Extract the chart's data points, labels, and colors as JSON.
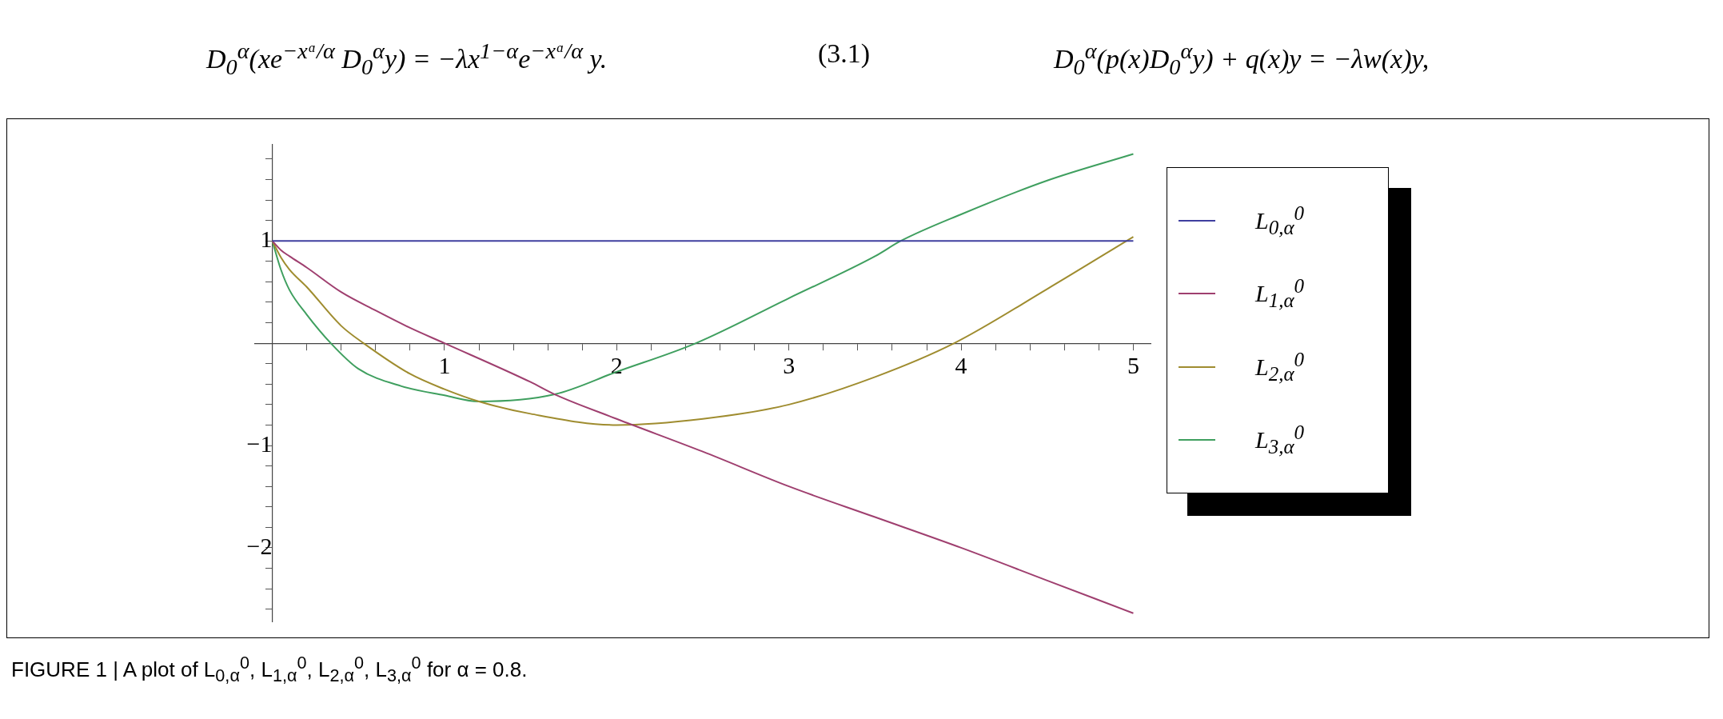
{
  "chart_data": {
    "type": "line",
    "annotations": [
      "D$_{0}$$^{α}$(xe$^{−xᵅ/α}$ D$_{0}$$^{α}$y) = −λx$^{1−α}$e$^{−xᵅ/α}$ y.",
      "(3.1)",
      "D$_{0}$$^{α}$(p(x)D$_{0}$$^{α}$y) + q(x)y = −λw(x)y,",
      "FIGURE 1 | A plot of L$_{0,α}$$^{0}$, L$_{1,α}$$^{0}$, L$_{2,α}$$^{0}$, L$_{3,α}$$^{0}$ for α = 0.8."
    ],
    "series": [
      {
        "name": "L$_{0,α}$$^{0}$",
        "color": "#3f3f9f",
        "x": [
          0,
          5
        ],
        "values": [
          1,
          1
        ]
      },
      {
        "name": "L$_{1,α}$$^{0}$",
        "color": "#9f3f6f",
        "x": [
          0,
          0.05,
          0.1,
          0.2,
          0.4,
          0.6,
          0.8,
          1.0,
          1.5,
          1.64,
          2.0,
          2.5,
          3.0,
          3.5,
          4.0,
          4.5,
          5.0
        ],
        "values": [
          1,
          0.91,
          0.85,
          0.74,
          0.5,
          0.32,
          0.15,
          0,
          -0.38,
          -0.5,
          -0.74,
          -1.06,
          -1.4,
          -1.7,
          -2.0,
          -2.32,
          -2.64
        ]
      },
      {
        "name": "L$_{2,α}$$^{0}$",
        "color": "#9f8c2f",
        "x": [
          0,
          0.05,
          0.1,
          0.2,
          0.4,
          0.53,
          0.8,
          1.0,
          1.2,
          1.5,
          2.0,
          2.5,
          3.0,
          3.5,
          3.96,
          4.5,
          5.0
        ],
        "values": [
          1,
          0.84,
          0.72,
          0.55,
          0.17,
          0,
          -0.3,
          -0.45,
          -0.57,
          -0.69,
          -0.8,
          -0.74,
          -0.6,
          -0.33,
          0,
          0.53,
          1.04
        ]
      },
      {
        "name": "L$_{3,α}$$^{0}$",
        "color": "#3f9f5f",
        "x": [
          0,
          0.05,
          0.1,
          0.2,
          0.34,
          0.5,
          0.75,
          1.0,
          1.2,
          1.64,
          2.0,
          2.46,
          3.0,
          3.5,
          3.65,
          4.0,
          4.5,
          5.0
        ],
        "values": [
          1,
          0.72,
          0.52,
          0.28,
          0,
          -0.25,
          -0.42,
          -0.51,
          -0.57,
          -0.5,
          -0.28,
          0,
          0.44,
          0.85,
          1.0,
          1.26,
          1.59,
          1.85
        ]
      }
    ],
    "xlim": [
      -0.1,
      5.1
    ],
    "ylim": [
      -2.72,
      1.94
    ],
    "xticks": [
      {
        "value": 0.2,
        "label": null
      },
      {
        "value": 0.4,
        "label": null
      },
      {
        "value": 0.6,
        "label": null
      },
      {
        "value": 0.8,
        "label": null
      },
      1,
      {
        "value": 1.2,
        "label": null
      },
      {
        "value": 1.4,
        "label": null
      },
      {
        "value": 1.6,
        "label": null
      },
      {
        "value": 1.8,
        "label": null
      },
      2,
      {
        "value": 2.2,
        "label": null
      },
      {
        "value": 2.4,
        "label": null
      },
      {
        "value": 2.6,
        "label": null
      },
      {
        "value": 2.8,
        "label": null
      },
      3,
      {
        "value": 3.2,
        "label": null
      },
      {
        "value": 3.4,
        "label": null
      },
      {
        "value": 3.6,
        "label": null
      },
      {
        "value": 3.8,
        "label": null
      },
      4,
      {
        "value": 4.2,
        "label": null
      },
      {
        "value": 4.4,
        "label": null
      },
      {
        "value": 4.6,
        "label": null
      },
      {
        "value": 4.8,
        "label": null
      },
      5
    ],
    "yticks": [
      {
        "value": -2.6,
        "label": null
      },
      {
        "value": -2.4,
        "label": null
      },
      {
        "value": -2.2,
        "label": null
      },
      {
        "value": -2,
        "label": "−2"
      },
      {
        "value": -1.8,
        "label": null
      },
      {
        "value": -1.6,
        "label": null
      },
      {
        "value": -1.4,
        "label": null
      },
      {
        "value": -1.2,
        "label": null
      },
      {
        "value": -1,
        "label": "−1"
      },
      {
        "value": -0.8,
        "label": null
      },
      {
        "value": -0.6,
        "label": null
      },
      {
        "value": -0.4,
        "label": null
      },
      {
        "value": -0.2,
        "label": null
      },
      {
        "value": 0.2,
        "label": null
      },
      {
        "value": 0.4,
        "label": null
      },
      {
        "value": 0.6,
        "label": null
      },
      {
        "value": 0.8,
        "label": null
      },
      1,
      {
        "value": 1.2,
        "label": null
      },
      {
        "value": 1.4,
        "label": null
      },
      {
        "value": 1.6,
        "label": null
      },
      {
        "value": 1.8,
        "label": null
      }
    ],
    "grid": false,
    "legend": "right",
    "marker": "none",
    "line_style": "solid"
  }
}
